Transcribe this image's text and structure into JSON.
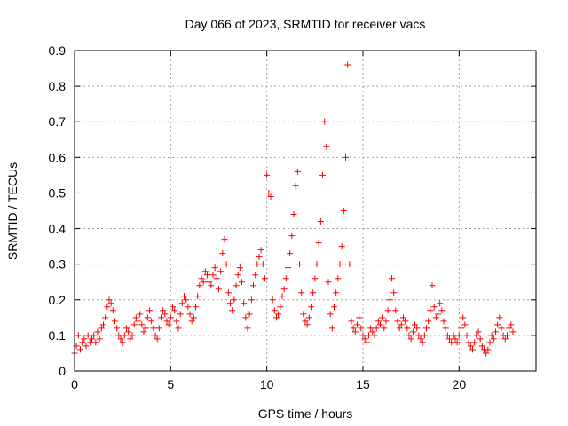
{
  "chart_data": {
    "type": "scatter",
    "title": "Day 066 of 2023, SRMTID for receiver vacs",
    "xlabel": "GPS time / hours",
    "ylabel": "SRMTID / TECUs",
    "xlim": [
      0,
      24
    ],
    "ylim": [
      0,
      0.9
    ],
    "xticks": [
      0,
      5,
      10,
      15,
      20
    ],
    "yticks": [
      0,
      0.1,
      0.2,
      0.3,
      0.4,
      0.5,
      0.6,
      0.7,
      0.8,
      0.9
    ],
    "xtick_labels": [
      "0",
      "5",
      "10",
      "15",
      "20"
    ],
    "ytick_labels": [
      "0",
      "0.1",
      "0.2",
      "0.3",
      "0.4",
      "0.5",
      "0.6",
      "0.7",
      "0.8",
      "0.9"
    ],
    "grid": true,
    "marker": "+",
    "color": "#ff0000",
    "series": [
      {
        "name": "SRMTID",
        "x": [
          0.0,
          0.1,
          0.2,
          0.3,
          0.4,
          0.5,
          0.6,
          0.7,
          0.8,
          0.9,
          1.0,
          1.1,
          1.2,
          1.3,
          1.4,
          1.5,
          1.6,
          1.7,
          1.8,
          1.9,
          2.0,
          2.1,
          2.2,
          2.3,
          2.4,
          2.5,
          2.6,
          2.7,
          2.8,
          2.9,
          3.0,
          3.1,
          3.2,
          3.3,
          3.4,
          3.5,
          3.6,
          3.7,
          3.8,
          3.9,
          4.0,
          4.1,
          4.2,
          4.3,
          4.4,
          4.5,
          4.6,
          4.7,
          4.8,
          4.9,
          5.0,
          5.1,
          5.2,
          5.3,
          5.4,
          5.5,
          5.6,
          5.7,
          5.8,
          5.9,
          6.0,
          6.1,
          6.2,
          6.3,
          6.4,
          6.5,
          6.6,
          6.7,
          6.8,
          6.9,
          7.0,
          7.1,
          7.2,
          7.3,
          7.4,
          7.5,
          7.6,
          7.7,
          7.8,
          7.9,
          8.0,
          8.1,
          8.2,
          8.3,
          8.4,
          8.5,
          8.6,
          8.7,
          8.8,
          8.9,
          9.0,
          9.1,
          9.2,
          9.3,
          9.4,
          9.5,
          9.6,
          9.7,
          9.8,
          9.9,
          10.0,
          10.1,
          10.2,
          10.3,
          10.4,
          10.5,
          10.6,
          10.7,
          10.8,
          10.9,
          11.0,
          11.1,
          11.2,
          11.3,
          11.4,
          11.5,
          11.6,
          11.7,
          11.8,
          11.9,
          12.0,
          12.1,
          12.2,
          12.3,
          12.4,
          12.5,
          12.6,
          12.7,
          12.8,
          12.9,
          13.0,
          13.1,
          13.2,
          13.3,
          13.4,
          13.5,
          13.6,
          13.7,
          13.8,
          13.9,
          14.0,
          14.1,
          14.2,
          14.3,
          14.4,
          14.5,
          14.6,
          14.7,
          14.8,
          14.9,
          15.0,
          15.1,
          15.2,
          15.3,
          15.4,
          15.5,
          15.6,
          15.7,
          15.8,
          15.9,
          16.0,
          16.1,
          16.2,
          16.3,
          16.4,
          16.5,
          16.6,
          16.7,
          16.8,
          16.9,
          17.0,
          17.1,
          17.2,
          17.3,
          17.4,
          17.5,
          17.6,
          17.7,
          17.8,
          17.9,
          18.0,
          18.1,
          18.2,
          18.3,
          18.4,
          18.5,
          18.6,
          18.7,
          18.8,
          18.9,
          19.0,
          19.1,
          19.2,
          19.3,
          19.4,
          19.5,
          19.6,
          19.7,
          19.8,
          19.9,
          20.0,
          20.1,
          20.2,
          20.3,
          20.4,
          20.5,
          20.6,
          20.7,
          20.8,
          20.9,
          21.0,
          21.1,
          21.2,
          21.3,
          21.4,
          21.5,
          21.6,
          21.7,
          21.8,
          21.9,
          22.0,
          22.1,
          22.2,
          22.3,
          22.4,
          22.5,
          22.6,
          22.7,
          22.8
        ],
        "y": [
          0.05,
          0.07,
          0.1,
          0.06,
          0.08,
          0.09,
          0.07,
          0.1,
          0.08,
          0.09,
          0.1,
          0.08,
          0.11,
          0.09,
          0.12,
          0.13,
          0.15,
          0.18,
          0.2,
          0.19,
          0.17,
          0.14,
          0.12,
          0.1,
          0.09,
          0.08,
          0.1,
          0.12,
          0.11,
          0.09,
          0.1,
          0.13,
          0.15,
          0.14,
          0.16,
          0.13,
          0.11,
          0.12,
          0.15,
          0.17,
          0.14,
          0.12,
          0.1,
          0.09,
          0.12,
          0.15,
          0.17,
          0.16,
          0.14,
          0.13,
          0.15,
          0.18,
          0.17,
          0.14,
          0.12,
          0.16,
          0.19,
          0.21,
          0.2,
          0.18,
          0.16,
          0.14,
          0.15,
          0.18,
          0.21,
          0.24,
          0.26,
          0.25,
          0.28,
          0.27,
          0.25,
          0.24,
          0.27,
          0.29,
          0.26,
          0.23,
          0.28,
          0.33,
          0.37,
          0.3,
          0.22,
          0.19,
          0.17,
          0.2,
          0.24,
          0.27,
          0.29,
          0.25,
          0.19,
          0.15,
          0.12,
          0.16,
          0.2,
          0.24,
          0.27,
          0.3,
          0.32,
          0.34,
          0.3,
          0.26,
          0.55,
          0.5,
          0.49,
          0.2,
          0.17,
          0.15,
          0.16,
          0.18,
          0.21,
          0.23,
          0.26,
          0.29,
          0.33,
          0.38,
          0.44,
          0.52,
          0.56,
          0.3,
          0.22,
          0.16,
          0.14,
          0.13,
          0.15,
          0.18,
          0.22,
          0.26,
          0.3,
          0.36,
          0.42,
          0.55,
          0.7,
          0.63,
          0.25,
          0.16,
          0.12,
          0.18,
          0.22,
          0.26,
          0.3,
          0.35,
          0.45,
          0.6,
          0.86,
          0.3,
          0.14,
          0.12,
          0.11,
          0.13,
          0.15,
          0.12,
          0.1,
          0.09,
          0.08,
          0.1,
          0.12,
          0.11,
          0.1,
          0.12,
          0.14,
          0.13,
          0.15,
          0.12,
          0.14,
          0.17,
          0.2,
          0.26,
          0.22,
          0.17,
          0.14,
          0.12,
          0.13,
          0.15,
          0.14,
          0.12,
          0.1,
          0.09,
          0.11,
          0.13,
          0.12,
          0.1,
          0.09,
          0.08,
          0.1,
          0.12,
          0.14,
          0.17,
          0.24,
          0.18,
          0.15,
          0.16,
          0.19,
          0.17,
          0.14,
          0.12,
          0.1,
          0.09,
          0.08,
          0.1,
          0.09,
          0.08,
          0.1,
          0.12,
          0.15,
          0.13,
          0.1,
          0.08,
          0.07,
          0.06,
          0.08,
          0.1,
          0.11,
          0.09,
          0.07,
          0.06,
          0.05,
          0.06,
          0.08,
          0.1,
          0.09,
          0.11,
          0.13,
          0.15,
          0.12,
          0.1,
          0.09,
          0.1,
          0.12,
          0.13,
          0.11
        ]
      }
    ]
  }
}
